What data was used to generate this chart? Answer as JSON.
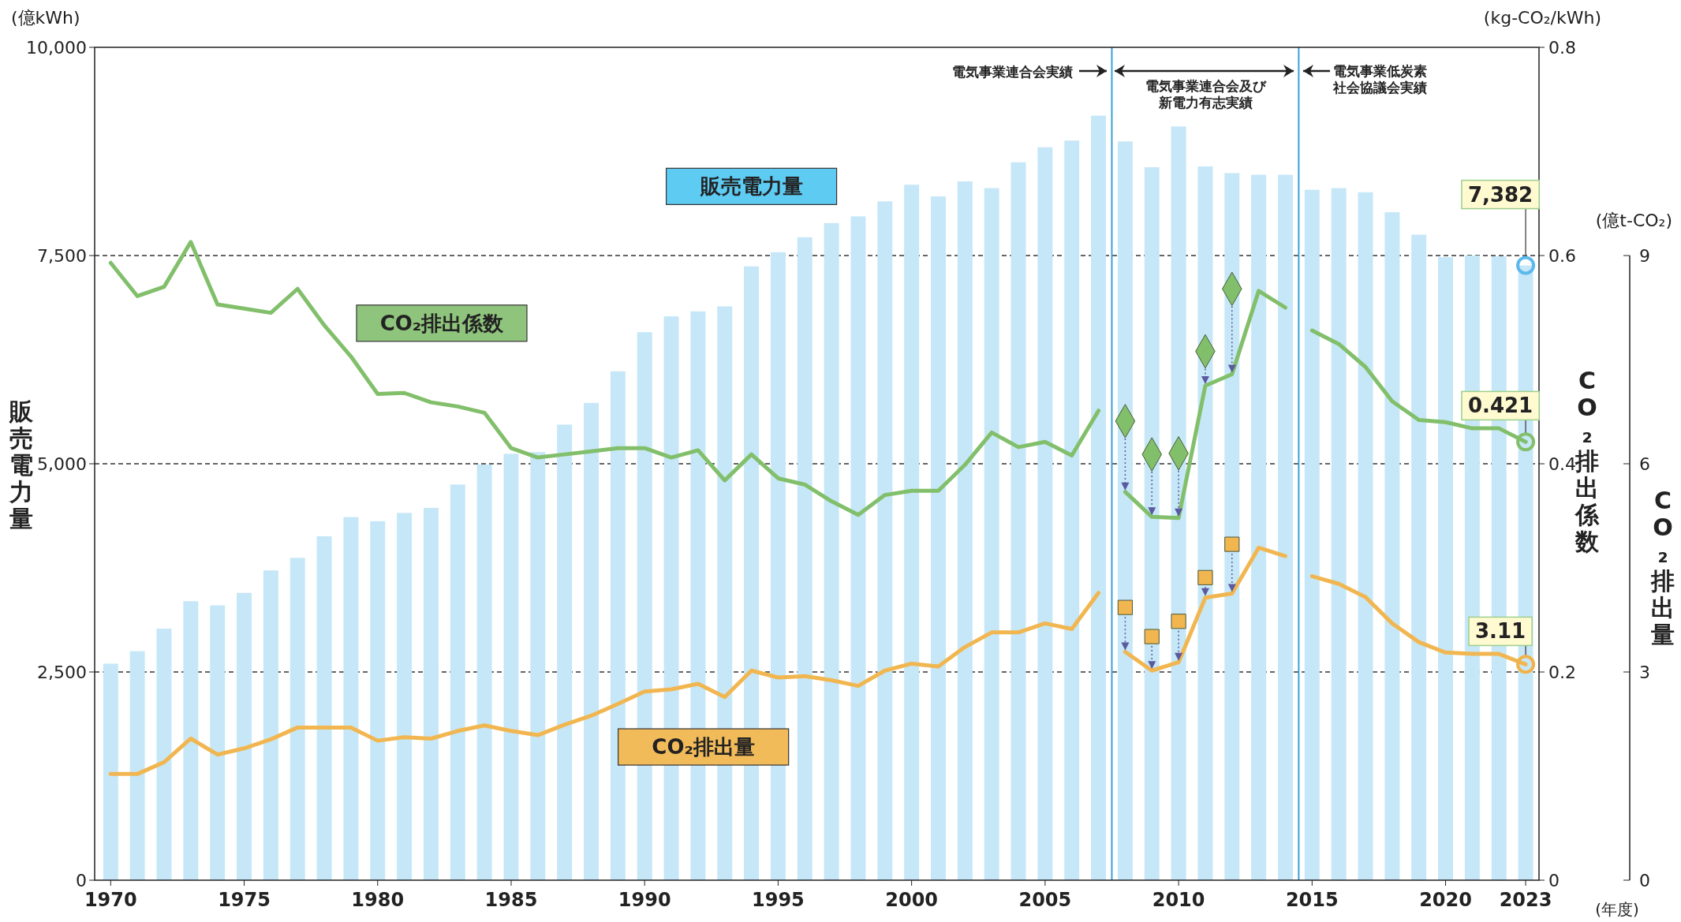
{
  "chart_data": {
    "type": "bar",
    "x": [
      1970,
      1971,
      1972,
      1973,
      1974,
      1975,
      1976,
      1977,
      1978,
      1979,
      1980,
      1981,
      1982,
      1983,
      1984,
      1985,
      1986,
      1987,
      1988,
      1989,
      1990,
      1991,
      1992,
      1993,
      1994,
      1995,
      1996,
      1997,
      1998,
      1999,
      2000,
      2001,
      2002,
      2003,
      2004,
      2005,
      2006,
      2007,
      2008,
      2009,
      2010,
      2011,
      2012,
      2013,
      2014,
      2015,
      2016,
      2017,
      2018,
      2019,
      2020,
      2021,
      2022,
      2023
    ],
    "xlim": [
      1969.4,
      2023.5
    ],
    "xticks": [
      1970,
      1975,
      1980,
      1985,
      1990,
      1995,
      2000,
      2005,
      2010,
      2015,
      2020,
      2023
    ],
    "ylim": [
      0,
      10000
    ],
    "yticks": [
      0,
      {
        "value": 2500,
        "label": "2,500"
      },
      {
        "value": 5000,
        "label": "5,000"
      },
      {
        "value": 7500,
        "label": "7,500"
      },
      {
        "value": 10000,
        "label": "10,000"
      }
    ],
    "y2lim": [
      0,
      0.8
    ],
    "y2ticks": [
      0,
      0.2,
      0.4,
      0.6,
      0.8
    ],
    "y3lim": [
      0,
      9
    ],
    "y3ticks": [
      0,
      3,
      6,
      9
    ],
    "ylabel": "販売電力量",
    "y2label": "CO₂排出係数",
    "y3label": "CO₂排出量",
    "grid": "y",
    "legend": false,
    "series": [
      {
        "name": "販売電力量",
        "color": "#c6e7f7",
        "values": [
          2600,
          2750,
          3020,
          3350,
          3300,
          3450,
          3720,
          3870,
          4130,
          4360,
          4310,
          4410,
          4470,
          4750,
          4990,
          5120,
          5140,
          5470,
          5730,
          6110,
          6580,
          6770,
          6830,
          6890,
          7370,
          7540,
          7720,
          7890,
          7970,
          8150,
          8350,
          8210,
          8390,
          8310,
          8620,
          8800,
          8880,
          9180,
          8870,
          8560,
          9050,
          8570,
          8490,
          8470,
          8470,
          8290,
          8310,
          8260,
          8020,
          7750,
          7480,
          7500,
          7490,
          7382
        ],
        "value_labels": [
          null,
          null,
          null,
          null,
          null,
          null,
          null,
          null,
          null,
          null,
          null,
          null,
          null,
          null,
          null,
          null,
          null,
          null,
          null,
          null,
          null,
          null,
          null,
          null,
          null,
          null,
          null,
          null,
          null,
          null,
          null,
          null,
          null,
          null,
          null,
          null,
          null,
          null,
          null,
          null,
          null,
          null,
          null,
          null,
          null,
          null,
          null,
          null,
          null,
          null,
          null,
          null,
          null,
          "7,382"
        ]
      },
      {
        "name": "CO₂排出係数",
        "type": "line",
        "axis": "y2",
        "color": "#82bf6b",
        "x": [
          1970,
          1971,
          1972,
          1973,
          1974,
          1975,
          1976,
          1977,
          1978,
          1979,
          1980,
          1981,
          1982,
          1983,
          1984,
          1985,
          1986,
          1987,
          1988,
          1989,
          1990,
          1991,
          1992,
          1993,
          1994,
          1995,
          1996,
          1997,
          1998,
          1999,
          2000,
          2001,
          2002,
          2003,
          2004,
          2005,
          2006,
          2007
        ],
        "values": [
          0.593,
          0.561,
          0.57,
          0.613,
          0.553,
          0.549,
          0.545,
          0.568,
          0.533,
          0.503,
          0.467,
          0.468,
          0.459,
          0.455,
          0.449,
          0.415,
          0.406,
          0.409,
          0.412,
          0.415,
          0.415,
          0.406,
          0.413,
          0.384,
          0.409,
          0.386,
          0.38,
          0.364,
          0.351,
          0.37,
          0.374,
          0.374,
          0.399,
          0.43,
          0.416,
          0.421,
          0.408,
          0.451
        ]
      },
      {
        "type": "line",
        "axis": "y2",
        "color": "#82bf6b",
        "x": [
          2008,
          2009,
          2010,
          2011,
          2012,
          2013,
          2014
        ],
        "values": [
          0.373,
          0.349,
          0.348,
          0.475,
          0.486,
          0.566,
          0.55
        ]
      },
      {
        "type": "line",
        "axis": "y2",
        "color": "#82bf6b",
        "x": [
          2015,
          2016,
          2017,
          2018,
          2019,
          2020,
          2021,
          2022,
          2023
        ],
        "values": [
          0.528,
          0.515,
          0.493,
          0.46,
          0.442,
          0.44,
          0.434,
          0.434,
          0.421
        ],
        "value_labels": [
          null,
          null,
          null,
          null,
          null,
          null,
          null,
          null,
          "0.421"
        ]
      },
      {
        "type": "scatter",
        "axis": "y2",
        "marker": "diamond",
        "color": "#82bf6b",
        "x": [
          2008,
          2009,
          2010,
          2011,
          2012
        ],
        "values": [
          0.441,
          0.409,
          0.41,
          0.508,
          0.568
        ]
      },
      {
        "name": "CO₂排出量",
        "type": "line",
        "axis": "y3",
        "color": "#f1b650",
        "x": [
          1970,
          1971,
          1972,
          1973,
          1974,
          1975,
          1976,
          1977,
          1978,
          1979,
          1980,
          1981,
          1982,
          1983,
          1984,
          1985,
          1986,
          1987,
          1988,
          1989,
          1990,
          1991,
          1992,
          1993,
          1994,
          1995,
          1996,
          1997,
          1998,
          1999,
          2000,
          2001,
          2002,
          2003,
          2004,
          2005,
          2006,
          2007
        ],
        "values": [
          1.53,
          1.53,
          1.7,
          2.04,
          1.81,
          1.9,
          2.03,
          2.2,
          2.2,
          2.2,
          2.01,
          2.06,
          2.04,
          2.15,
          2.23,
          2.15,
          2.09,
          2.24,
          2.37,
          2.54,
          2.72,
          2.75,
          2.83,
          2.64,
          3.02,
          2.92,
          2.94,
          2.88,
          2.8,
          3.02,
          3.12,
          3.08,
          3.36,
          3.57,
          3.57,
          3.7,
          3.62,
          4.14
        ]
      },
      {
        "type": "line",
        "axis": "y3",
        "color": "#f1b650",
        "x": [
          2008,
          2009,
          2010,
          2011,
          2012,
          2013,
          2014
        ],
        "values": [
          3.29,
          3.02,
          3.14,
          4.07,
          4.13,
          4.79,
          4.67
        ]
      },
      {
        "type": "line",
        "axis": "y3",
        "color": "#f1b650",
        "x": [
          2015,
          2016,
          2017,
          2018,
          2019,
          2020,
          2021,
          2022,
          2023
        ],
        "values": [
          4.38,
          4.27,
          4.08,
          3.7,
          3.43,
          3.28,
          3.26,
          3.26,
          3.11
        ],
        "value_labels": [
          null,
          null,
          null,
          null,
          null,
          null,
          null,
          null,
          "3.11"
        ]
      },
      {
        "type": "scatter",
        "axis": "y3",
        "marker": "square",
        "color": "#f1b650",
        "x": [
          2008,
          2009,
          2010,
          2011,
          2012
        ],
        "values": [
          3.93,
          3.51,
          3.73,
          4.36,
          4.84
        ]
      }
    ],
    "ref_lines": [
      {
        "axis": "x",
        "value": 2007.5,
        "color": "#3aa0d8"
      },
      {
        "axis": "x",
        "value": 2014.5,
        "color": "#3aa0d8"
      }
    ],
    "annotations": [
      "(億kWh)",
      "(kg-CO₂/kWh)",
      "(億t-CO₂)",
      "(年度)",
      "電気事業連合会実績",
      "電気事業連合会及び新電力有志実績",
      "電気事業低炭素社会協議会実績"
    ]
  }
}
